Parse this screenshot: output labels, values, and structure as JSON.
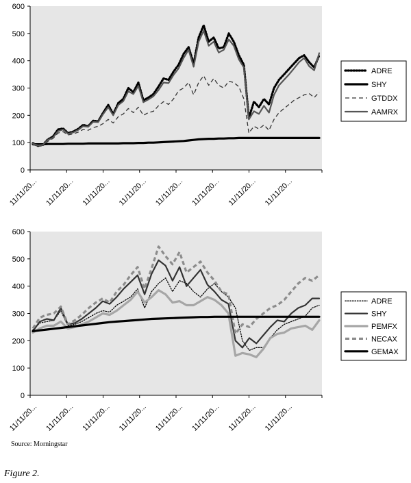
{
  "chart_data": [
    {
      "type": "line",
      "ylim": [
        0,
        600
      ],
      "yticks": [
        0,
        100,
        200,
        300,
        400,
        500,
        600
      ],
      "xtick_labels": [
        "11/11/20...",
        "11/11/20...",
        "11/11/20...",
        "11/11/20...",
        "11/11/20...",
        "11/11/20...",
        "11/11/20...",
        "11/11/20..."
      ],
      "grid": false,
      "legend_position": "right",
      "series": [
        {
          "name": "ADRE",
          "style": "dotted-bold",
          "color": "#000000",
          "values": [
            98,
            88,
            92,
            112,
            122,
            148,
            152,
            135,
            140,
            150,
            165,
            160,
            180,
            178,
            210,
            238,
            205,
            245,
            260,
            300,
            285,
            320,
            255,
            265,
            278,
            305,
            335,
            330,
            360,
            385,
            425,
            450,
            390,
            485,
            530,
            470,
            485,
            445,
            450,
            500,
            470,
            420,
            385,
            190,
            250,
            230,
            260,
            240,
            300,
            330,
            350,
            370,
            390,
            410,
            420,
            395,
            375,
            420
          ]
        },
        {
          "name": "SHY",
          "style": "solid-thick",
          "color": "#000000",
          "values": [
            94,
            94,
            94,
            95,
            95,
            95,
            95,
            96,
            96,
            96,
            96,
            97,
            97,
            97,
            97,
            97,
            97,
            97,
            98,
            98,
            98,
            99,
            99,
            100,
            100,
            101,
            102,
            103,
            104,
            105,
            106,
            108,
            110,
            112,
            113,
            114,
            114,
            115,
            115,
            116,
            116,
            117,
            117,
            117,
            117,
            117,
            117,
            117,
            117,
            117,
            117,
            117,
            117,
            117,
            117,
            117,
            117,
            117
          ]
        },
        {
          "name": "GTDDX",
          "style": "dashed",
          "color": "#333333",
          "values": [
            92,
            88,
            90,
            105,
            115,
            135,
            140,
            128,
            132,
            138,
            148,
            145,
            155,
            160,
            170,
            185,
            172,
            195,
            205,
            225,
            210,
            230,
            200,
            210,
            215,
            235,
            250,
            240,
            260,
            290,
            300,
            320,
            275,
            320,
            345,
            310,
            335,
            310,
            300,
            325,
            320,
            305,
            260,
            135,
            160,
            150,
            165,
            145,
            185,
            210,
            225,
            240,
            255,
            265,
            275,
            280,
            265,
            285
          ]
        },
        {
          "name": "AAMRX",
          "style": "solid",
          "color": "#555555",
          "values": [
            96,
            90,
            92,
            110,
            118,
            142,
            148,
            132,
            137,
            146,
            160,
            158,
            176,
            175,
            205,
            230,
            200,
            238,
            252,
            288,
            278,
            308,
            248,
            258,
            270,
            292,
            320,
            318,
            348,
            372,
            410,
            440,
            378,
            470,
            510,
            455,
            470,
            430,
            440,
            478,
            455,
            405,
            375,
            185,
            215,
            205,
            235,
            210,
            275,
            310,
            330,
            350,
            372,
            395,
            410,
            380,
            365,
            428
          ]
        }
      ]
    },
    {
      "type": "line",
      "ylim": [
        0,
        600
      ],
      "yticks": [
        0,
        100,
        200,
        300,
        400,
        500,
        600
      ],
      "xtick_labels": [
        "11/11/20...",
        "11/11/20...",
        "11/11/20...",
        "11/11/20...",
        "11/11/20...",
        "11/11/20...",
        "11/11/20...",
        "11/11/20..."
      ],
      "grid": false,
      "legend_position": "right",
      "series": [
        {
          "name": "ADRE",
          "style": "dotted",
          "color": "#000000",
          "values": [
            240,
            265,
            270,
            275,
            310,
            255,
            260,
            270,
            285,
            300,
            310,
            305,
            330,
            345,
            360,
            390,
            320,
            380,
            410,
            430,
            380,
            420,
            410,
            380,
            360,
            390,
            410,
            380,
            360,
            320,
            200,
            165,
            175,
            175,
            210,
            240,
            260,
            270,
            280,
            290,
            320,
            330
          ]
        },
        {
          "name": "SHY",
          "style": "solid",
          "color": "#333333",
          "values": [
            235,
            270,
            280,
            275,
            320,
            260,
            265,
            280,
            300,
            320,
            345,
            335,
            360,
            390,
            415,
            440,
            370,
            445,
            495,
            475,
            420,
            470,
            400,
            430,
            460,
            405,
            380,
            350,
            335,
            200,
            175,
            210,
            190,
            220,
            250,
            275,
            270,
            300,
            320,
            330,
            355,
            355
          ]
        },
        {
          "name": "PEMFX",
          "style": "solid-thick",
          "color": "#a6a6a6",
          "values": [
            230,
            245,
            255,
            255,
            270,
            245,
            250,
            260,
            270,
            285,
            300,
            295,
            310,
            330,
            350,
            380,
            340,
            360,
            385,
            370,
            340,
            345,
            330,
            330,
            345,
            360,
            350,
            330,
            300,
            145,
            155,
            150,
            140,
            170,
            210,
            225,
            230,
            245,
            250,
            255,
            240,
            275
          ]
        },
        {
          "name": "NECAX",
          "style": "dashed-thick",
          "color": "#8c8c8c",
          "values": [
            245,
            285,
            295,
            300,
            325,
            260,
            275,
            295,
            320,
            340,
            355,
            340,
            380,
            405,
            440,
            470,
            390,
            465,
            545,
            510,
            480,
            525,
            450,
            470,
            490,
            450,
            420,
            380,
            370,
            225,
            260,
            250,
            280,
            300,
            320,
            330,
            350,
            380,
            410,
            430,
            420,
            440
          ]
        },
        {
          "name": "GEMAX",
          "style": "solid-thick",
          "color": "#000000",
          "values": [
            235,
            238,
            241,
            244,
            247,
            250,
            253,
            256,
            259,
            262,
            265,
            268,
            270,
            272,
            274,
            276,
            278,
            280,
            281,
            282,
            283,
            284,
            285,
            286,
            287,
            287,
            288,
            288,
            288,
            288,
            288,
            288,
            288,
            288,
            288,
            288,
            288,
            288,
            288,
            288,
            288,
            288
          ]
        }
      ]
    }
  ],
  "source_text": "Source: Morningstar",
  "caption": "Figure 2."
}
